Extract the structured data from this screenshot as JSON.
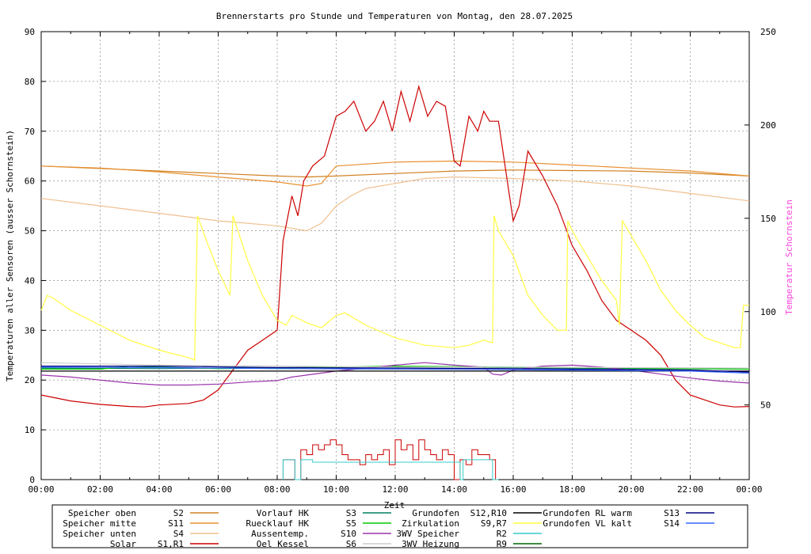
{
  "chart_data": {
    "type": "line",
    "title": "Brennerstarts pro Stunde und Temperaturen von Montag, den 28.07.2025",
    "xlabel": "Zeit",
    "ylabel": "Temperaturen aller Sensoren (ausser Schornstein)",
    "y2label": "Temperatur Schornstein",
    "ylim": [
      0,
      90
    ],
    "y2lim": [
      10,
      250
    ],
    "xlim": [
      "00:00",
      "24:00"
    ],
    "grid": true,
    "x_ticks": [
      "00:00",
      "02:00",
      "04:00",
      "06:00",
      "08:00",
      "10:00",
      "12:00",
      "14:00",
      "16:00",
      "18:00",
      "20:00",
      "22:00",
      "00:00"
    ],
    "y_ticks": [
      0,
      10,
      20,
      30,
      40,
      50,
      60,
      70,
      80,
      90
    ],
    "y2_ticks": [
      50,
      100,
      150,
      200,
      250
    ],
    "colors": {
      "speicher_oben": "#d08020",
      "speicher_mitte": "#e89030",
      "speicher_unten": "#f0c090",
      "solar": "#cc0000",
      "vorlauf_hk": "#008060",
      "ruecklauf_hk": "#00cc00",
      "aussentemp": "#9933aa",
      "oel_kessel": "#cccccc",
      "grundofen": "#000000",
      "zirkulation": "#ffff40",
      "dreiwv_speicher": "#33cccc",
      "dreiwv_heizung": "#006600",
      "grundofen_rl": "#000080",
      "grundofen_vl": "#3366ff",
      "y2_label": "#ff44dd"
    },
    "legend": [
      {
        "name": "Speicher oben",
        "code": "S2",
        "color": "#d08020"
      },
      {
        "name": "Speicher mitte",
        "code": "S11",
        "color": "#e89030"
      },
      {
        "name": "Speicher unten",
        "code": "S4",
        "color": "#f0c090"
      },
      {
        "name": "Solar",
        "code": "S1,R1",
        "color": "#cc0000"
      },
      {
        "name": "Vorlauf HK",
        "code": "S3",
        "color": "#008060"
      },
      {
        "name": "Ruecklauf HK",
        "code": "S5",
        "color": "#00cc00"
      },
      {
        "name": "Aussentemp.",
        "code": "S10",
        "color": "#9933aa"
      },
      {
        "name": "Oel Kessel",
        "code": "S6",
        "color": "#cccccc"
      },
      {
        "name": "Grundofen",
        "code": "S12,R10",
        "color": "#000000"
      },
      {
        "name": "Zirkulation",
        "code": "S9,R7",
        "color": "#ffff40"
      },
      {
        "name": "3WV Speicher",
        "code": "R2",
        "color": "#33cccc"
      },
      {
        "name": "3WV Heizung",
        "code": "R9",
        "color": "#006600"
      },
      {
        "name": "Grundofen RL warm",
        "code": "S13",
        "color": "#000080"
      },
      {
        "name": "Grundofen VL kalt",
        "code": "S14",
        "color": "#3366ff"
      }
    ],
    "series": [
      {
        "name": "Speicher oben",
        "color": "#d08020",
        "x": [
          0,
          2,
          4,
          6,
          8,
          9,
          10,
          12,
          14,
          16,
          18,
          20,
          22,
          24
        ],
        "y": [
          63,
          62.5,
          62,
          61.5,
          61,
          60.8,
          61,
          61.5,
          62,
          62.2,
          62.1,
          62,
          61.6,
          61
        ]
      },
      {
        "name": "Speicher mitte",
        "color": "#e89030",
        "x": [
          0,
          2,
          4,
          6,
          8,
          9,
          9.5,
          10,
          12,
          14,
          16,
          18,
          20,
          22,
          24
        ],
        "y": [
          63,
          62.6,
          61.8,
          60.8,
          59.8,
          59,
          59.5,
          63,
          63.8,
          64,
          63.8,
          63.2,
          62.6,
          62,
          61
        ]
      },
      {
        "name": "Speicher unten",
        "color": "#f0c090",
        "x": [
          0,
          2,
          4,
          6,
          8,
          9,
          9.5,
          10,
          10.5,
          11,
          12,
          13,
          14,
          16,
          18,
          20,
          22,
          24
        ],
        "y": [
          56.5,
          55,
          53.5,
          52,
          51,
          50,
          51.5,
          55,
          57,
          58.5,
          59.5,
          60.5,
          60.8,
          60.5,
          60,
          59,
          57.5,
          56
        ]
      },
      {
        "name": "Solar",
        "color": "#cc0000",
        "x": [
          0,
          1,
          2,
          3,
          3.5,
          4,
          5,
          5.5,
          6,
          6.5,
          7,
          7.5,
          8,
          8.2,
          8.5,
          8.7,
          8.9,
          9.2,
          9.6,
          10,
          10.3,
          10.6,
          11,
          11.3,
          11.6,
          11.9,
          12.2,
          12.5,
          12.8,
          13.1,
          13.4,
          13.7,
          14,
          14.2,
          14.5,
          14.8,
          15,
          15.2,
          15.5,
          15.8,
          16,
          16.2,
          16.5,
          17,
          17.5,
          18,
          18.5,
          19,
          19.5,
          20,
          20.5,
          21,
          21.5,
          22,
          22.5,
          23,
          23.5,
          24
        ],
        "y": [
          17,
          15.8,
          15.1,
          14.7,
          14.6,
          15,
          15.3,
          16,
          18,
          22,
          26,
          28,
          30,
          48,
          57,
          53,
          60,
          63,
          65,
          73,
          74,
          76,
          70,
          72,
          76,
          70,
          78,
          72,
          79,
          73,
          76,
          75,
          64,
          63,
          73,
          70,
          74,
          72,
          72,
          60,
          52,
          55,
          66,
          61,
          55,
          47,
          42,
          36,
          32,
          30,
          28,
          25,
          20,
          17,
          16,
          15,
          14.6,
          14.7
        ]
      },
      {
        "name": "Vorlauf HK",
        "color": "#008060",
        "x": [
          0,
          4,
          8,
          12,
          16,
          20,
          24
        ],
        "y": [
          22.4,
          22.3,
          22.5,
          22.7,
          22.5,
          22.3,
          22.2
        ]
      },
      {
        "name": "Ruecklauf HK",
        "color": "#00cc00",
        "x": [
          0,
          2,
          3,
          4,
          6,
          8,
          10,
          12,
          14,
          16,
          18,
          20,
          22,
          24
        ],
        "y": [
          22.2,
          22.2,
          22.8,
          22.6,
          22.3,
          22.4,
          22.6,
          22.8,
          22.7,
          22.6,
          22.5,
          22.4,
          22.3,
          22.2
        ]
      },
      {
        "name": "Aussentemp.",
        "color": "#9933aa",
        "x": [
          0,
          1,
          2,
          3,
          4,
          5,
          6,
          7,
          8,
          8.5,
          9,
          10,
          11,
          12,
          13,
          14,
          15,
          15.3,
          15.6,
          16,
          17,
          18,
          19,
          20,
          21,
          22,
          23,
          24
        ],
        "y": [
          21,
          20.6,
          20,
          19.4,
          19,
          19,
          19.2,
          19.6,
          19.9,
          20.6,
          21,
          21.8,
          22.4,
          23,
          23.5,
          23,
          22.6,
          21.2,
          21,
          22,
          22.8,
          23,
          22.6,
          22,
          21.2,
          20.4,
          19.8,
          19.4
        ]
      },
      {
        "name": "Oel Kessel",
        "color": "#cccccc",
        "x": [
          0,
          4,
          8,
          12,
          16,
          20,
          24
        ],
        "y": [
          23.5,
          23,
          22.8,
          22.6,
          22.6,
          22.5,
          22.4
        ]
      },
      {
        "name": "Grundofen",
        "color": "#000000",
        "x": [
          0,
          6,
          12,
          18,
          24
        ],
        "y": [
          21.8,
          21.8,
          21.8,
          21.8,
          21.8
        ]
      },
      {
        "name": "Zirkulation",
        "color": "#ffff40",
        "x": [
          0,
          0.2,
          0.4,
          1,
          2,
          3,
          4,
          5,
          5.2,
          5.3,
          5.6,
          6,
          6.4,
          6.5,
          7,
          7.5,
          8,
          8.3,
          8.5,
          9,
          9.5,
          10,
          10.3,
          11,
          12,
          13,
          14,
          14.5,
          15,
          15.3,
          15.35,
          15.5,
          16,
          16.5,
          17,
          17.5,
          17.8,
          17.85,
          18,
          18.5,
          19,
          19.5,
          19.6,
          19.7,
          20,
          20.5,
          21,
          21.5,
          22,
          22.5,
          23,
          23.5,
          23.7,
          23.8,
          24
        ],
        "y": [
          34,
          37,
          36.5,
          34,
          31,
          28,
          26,
          24.5,
          24,
          53,
          48,
          42,
          37,
          53,
          44,
          37,
          32,
          31,
          33,
          31.5,
          30.5,
          33,
          33.5,
          31,
          28.5,
          27,
          26.5,
          27,
          28,
          27.5,
          53,
          50,
          45,
          37,
          33,
          30,
          30,
          52,
          50,
          45,
          40,
          36,
          31,
          52,
          49,
          44,
          38,
          34,
          31,
          28.5,
          27.5,
          26.5,
          26.5,
          35,
          35
        ]
      },
      {
        "name": "Grundofen RL warm",
        "color": "#000080",
        "x": [
          0,
          4,
          8,
          12,
          16,
          18,
          20,
          22,
          23,
          24
        ],
        "y": [
          22.8,
          22.8,
          22.5,
          22.4,
          22.3,
          22.2,
          22.1,
          22,
          21.8,
          21.6
        ]
      },
      {
        "name": "Grundofen VL kalt",
        "color": "#3366ff",
        "x": [
          0,
          4,
          8,
          12,
          16,
          18,
          20,
          22,
          23,
          24
        ],
        "y": [
          22.6,
          22.5,
          22.3,
          22.2,
          22.1,
          22,
          21.9,
          21.8,
          21.6,
          21.4
        ]
      }
    ],
    "bars": [
      {
        "name": "Brennerstarts",
        "color": "#cc0000",
        "x": [
          8.2,
          8.4,
          8.6,
          8.8,
          9.0,
          9.2,
          9.4,
          9.6,
          9.8,
          10.0,
          10.2,
          10.4,
          10.6,
          10.8,
          11.0,
          11.2,
          11.4,
          11.6,
          11.8,
          12.0,
          12.2,
          12.4,
          12.6,
          12.8,
          13.0,
          13.2,
          13.4,
          13.6,
          13.8,
          14.0,
          14.2,
          14.4,
          14.6,
          14.8,
          15.0,
          15.2
        ],
        "y": [
          4,
          4,
          0,
          6,
          5,
          7,
          6,
          7,
          8,
          7,
          5,
          4,
          4,
          3,
          5,
          4,
          5,
          6,
          3,
          8,
          6,
          7,
          4,
          8,
          6,
          5,
          4,
          6,
          5,
          0,
          4,
          3,
          6,
          5,
          5,
          4
        ]
      },
      {
        "name": "3WV Speicher",
        "color": "#33cccc",
        "x": [
          8.2,
          8.6,
          8.8,
          9.2,
          14.2,
          14.3,
          14.6,
          15.3
        ],
        "y": [
          4,
          0,
          4,
          3.5,
          0,
          4,
          4,
          0
        ]
      }
    ]
  }
}
